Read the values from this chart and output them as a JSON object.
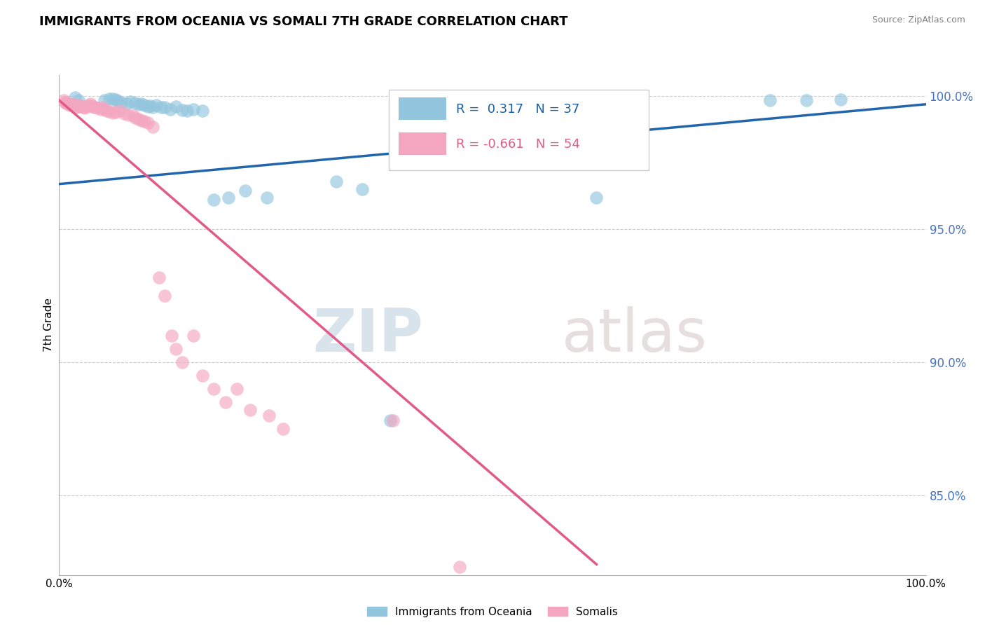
{
  "title": "IMMIGRANTS FROM OCEANIA VS SOMALI 7TH GRADE CORRELATION CHART",
  "source": "Source: ZipAtlas.com",
  "ylabel": "7th Grade",
  "legend_label1": "Immigrants from Oceania",
  "legend_label2": "Somalis",
  "r1": 0.317,
  "n1": 37,
  "r2": -0.661,
  "n2": 54,
  "xlim": [
    0.0,
    1.0
  ],
  "ylim": [
    0.82,
    1.008
  ],
  "yticks": [
    0.85,
    0.9,
    0.95,
    1.0
  ],
  "ytick_labels": [
    "85.0%",
    "90.0%",
    "95.0%",
    "100.0%"
  ],
  "xticks": [
    0.0,
    1.0
  ],
  "xtick_labels": [
    "0.0%",
    "100.0%"
  ],
  "color_blue": "#92c5de",
  "color_pink": "#f4a6c0",
  "line_blue": "#2166ac",
  "line_pink": "#e05a8a",
  "watermark_zip": "ZIP",
  "watermark_atlas": "atlas",
  "blue_points_x": [
    0.018,
    0.022,
    0.052,
    0.058,
    0.062,
    0.065,
    0.068,
    0.072,
    0.078,
    0.082,
    0.088,
    0.092,
    0.095,
    0.098,
    0.102,
    0.105,
    0.108,
    0.112,
    0.118,
    0.122,
    0.128,
    0.135,
    0.142,
    0.148,
    0.155,
    0.165,
    0.178,
    0.195,
    0.215,
    0.24,
    0.32,
    0.35,
    0.382,
    0.62,
    0.82,
    0.862,
    0.902
  ],
  "blue_points_y": [
    0.9995,
    0.9985,
    0.9985,
    0.999,
    0.999,
    0.9988,
    0.9982,
    0.9978,
    0.9972,
    0.998,
    0.9975,
    0.997,
    0.9972,
    0.9968,
    0.9962,
    0.9965,
    0.996,
    0.9968,
    0.9958,
    0.996,
    0.9952,
    0.9962,
    0.9948,
    0.9945,
    0.995,
    0.9945,
    0.961,
    0.962,
    0.9645,
    0.962,
    0.968,
    0.965,
    0.878,
    0.962,
    0.9985,
    0.9985,
    0.9988
  ],
  "pink_points_x": [
    0.005,
    0.007,
    0.008,
    0.01,
    0.012,
    0.014,
    0.015,
    0.016,
    0.018,
    0.02,
    0.022,
    0.024,
    0.025,
    0.028,
    0.03,
    0.032,
    0.034,
    0.036,
    0.038,
    0.04,
    0.042,
    0.045,
    0.048,
    0.05,
    0.052,
    0.055,
    0.058,
    0.062,
    0.065,
    0.07,
    0.075,
    0.08,
    0.085,
    0.088,
    0.092,
    0.095,
    0.098,
    0.102,
    0.108,
    0.115,
    0.122,
    0.13,
    0.135,
    0.142,
    0.155,
    0.165,
    0.178,
    0.192,
    0.205,
    0.22,
    0.242,
    0.258,
    0.385,
    0.462
  ],
  "pink_points_y": [
    0.9985,
    0.9978,
    0.9975,
    0.9972,
    0.9968,
    0.997,
    0.9968,
    0.9972,
    0.996,
    0.9958,
    0.9968,
    0.9962,
    0.9965,
    0.996,
    0.9955,
    0.9962,
    0.9968,
    0.9972,
    0.9965,
    0.9958,
    0.996,
    0.9955,
    0.9952,
    0.9958,
    0.995,
    0.9945,
    0.9942,
    0.9938,
    0.994,
    0.9945,
    0.9935,
    0.993,
    0.9928,
    0.992,
    0.9915,
    0.9908,
    0.9905,
    0.99,
    0.9885,
    0.932,
    0.925,
    0.91,
    0.905,
    0.9,
    0.91,
    0.895,
    0.89,
    0.885,
    0.89,
    0.882,
    0.88,
    0.875,
    0.878,
    0.823
  ],
  "blue_trendline_x": [
    0.0,
    1.0
  ],
  "blue_trendline_y": [
    0.967,
    0.997
  ],
  "pink_trendline_x": [
    0.0,
    0.62
  ],
  "pink_trendline_y": [
    0.9985,
    0.824
  ]
}
